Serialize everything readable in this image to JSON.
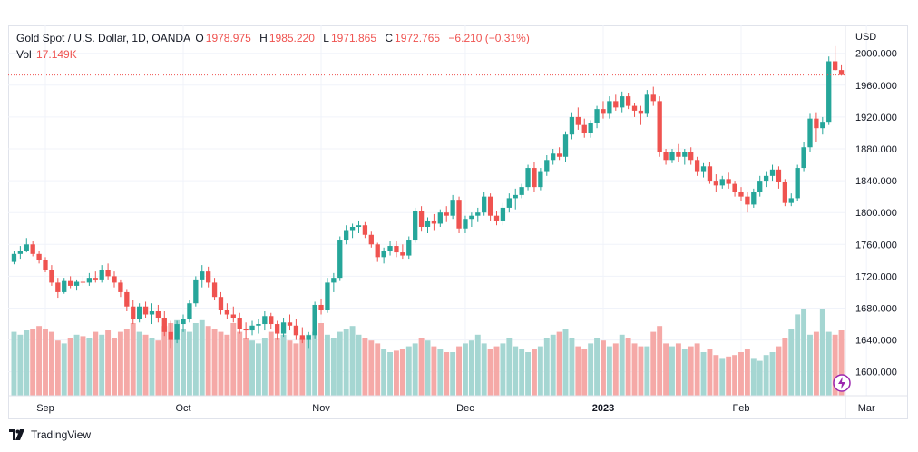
{
  "header": {
    "symbol": "Gold Spot / U.S. Dollar, 1D, OANDA",
    "o_label": "O",
    "o_value": "1978.975",
    "h_label": "H",
    "h_value": "1985.220",
    "l_label": "L",
    "l_value": "1971.865",
    "c_label": "C",
    "c_value": "1972.765",
    "change": "−6.210 (−0.31%)",
    "vol_label": "Vol",
    "vol_value": "17.149K"
  },
  "currency": "USD",
  "footer": {
    "brand": "TradingView"
  },
  "colors": {
    "up": "#26a69a",
    "down": "#ef5350",
    "vol_up": "#a5d6d2",
    "vol_down": "#f5a9a7",
    "grid": "#f0f3fa"
  },
  "chart_data": {
    "type": "candlestick",
    "title": "Gold Spot / U.S. Dollar, 1D, OANDA",
    "ylabel": "USD",
    "ylim": [
      1570,
      2035
    ],
    "y_ticks": [
      "1600.000",
      "1640.000",
      "1680.000",
      "1720.000",
      "1760.000",
      "1800.000",
      "1840.000",
      "1880.000",
      "1920.000",
      "1960.000",
      "2000.000"
    ],
    "x_ticks": [
      {
        "label": "Sep",
        "index": 5,
        "bold": false
      },
      {
        "label": "Oct",
        "index": 27,
        "bold": false
      },
      {
        "label": "Nov",
        "index": 49,
        "bold": false
      },
      {
        "label": "Dec",
        "index": 72,
        "bold": false
      },
      {
        "label": "2023",
        "index": 94,
        "bold": true
      },
      {
        "label": "Feb",
        "index": 116,
        "bold": false
      },
      {
        "label": "Mar",
        "index": 136,
        "bold": false
      }
    ],
    "last_price": 1972.765,
    "candles": [
      [
        1738,
        1752,
        1735,
        1748
      ],
      [
        1748,
        1758,
        1742,
        1752
      ],
      [
        1752,
        1768,
        1750,
        1760
      ],
      [
        1760,
        1764,
        1745,
        1748
      ],
      [
        1748,
        1752,
        1736,
        1740
      ],
      [
        1740,
        1744,
        1725,
        1728
      ],
      [
        1728,
        1734,
        1708,
        1712
      ],
      [
        1712,
        1718,
        1693,
        1700
      ],
      [
        1700,
        1718,
        1698,
        1714
      ],
      [
        1714,
        1720,
        1705,
        1708
      ],
      [
        1708,
        1716,
        1702,
        1713
      ],
      [
        1713,
        1720,
        1708,
        1712
      ],
      [
        1712,
        1724,
        1708,
        1718
      ],
      [
        1718,
        1726,
        1712,
        1716
      ],
      [
        1716,
        1734,
        1712,
        1728
      ],
      [
        1728,
        1736,
        1716,
        1720
      ],
      [
        1720,
        1726,
        1706,
        1712
      ],
      [
        1712,
        1716,
        1694,
        1700
      ],
      [
        1700,
        1704,
        1676,
        1682
      ],
      [
        1682,
        1690,
        1660,
        1666
      ],
      [
        1666,
        1686,
        1662,
        1682
      ],
      [
        1682,
        1688,
        1668,
        1672
      ],
      [
        1672,
        1686,
        1660,
        1676
      ],
      [
        1676,
        1684,
        1662,
        1668
      ],
      [
        1668,
        1676,
        1645,
        1650
      ],
      [
        1650,
        1664,
        1630,
        1640
      ],
      [
        1640,
        1664,
        1636,
        1660
      ],
      [
        1660,
        1672,
        1650,
        1666
      ],
      [
        1666,
        1690,
        1662,
        1686
      ],
      [
        1686,
        1720,
        1682,
        1716
      ],
      [
        1716,
        1734,
        1706,
        1726
      ],
      [
        1726,
        1732,
        1706,
        1712
      ],
      [
        1712,
        1718,
        1690,
        1694
      ],
      [
        1694,
        1700,
        1672,
        1678
      ],
      [
        1678,
        1686,
        1666,
        1672
      ],
      [
        1672,
        1682,
        1662,
        1668
      ],
      [
        1668,
        1674,
        1648,
        1654
      ],
      [
        1654,
        1662,
        1642,
        1652
      ],
      [
        1652,
        1664,
        1646,
        1658
      ],
      [
        1658,
        1666,
        1648,
        1660
      ],
      [
        1660,
        1676,
        1652,
        1670
      ],
      [
        1670,
        1674,
        1654,
        1660
      ],
      [
        1660,
        1664,
        1640,
        1648
      ],
      [
        1648,
        1668,
        1644,
        1662
      ],
      [
        1662,
        1672,
        1652,
        1658
      ],
      [
        1658,
        1666,
        1640,
        1646
      ],
      [
        1646,
        1656,
        1636,
        1640
      ],
      [
        1640,
        1650,
        1630,
        1646
      ],
      [
        1646,
        1688,
        1642,
        1684
      ],
      [
        1684,
        1692,
        1672,
        1678
      ],
      [
        1678,
        1718,
        1674,
        1712
      ],
      [
        1712,
        1724,
        1700,
        1718
      ],
      [
        1718,
        1770,
        1714,
        1766
      ],
      [
        1766,
        1784,
        1760,
        1778
      ],
      [
        1778,
        1786,
        1768,
        1782
      ],
      [
        1782,
        1790,
        1774,
        1784
      ],
      [
        1784,
        1788,
        1768,
        1772
      ],
      [
        1772,
        1776,
        1756,
        1760
      ],
      [
        1760,
        1762,
        1738,
        1744
      ],
      [
        1744,
        1756,
        1736,
        1752
      ],
      [
        1752,
        1764,
        1746,
        1758
      ],
      [
        1758,
        1764,
        1744,
        1750
      ],
      [
        1750,
        1760,
        1742,
        1746
      ],
      [
        1746,
        1770,
        1742,
        1766
      ],
      [
        1766,
        1806,
        1762,
        1802
      ],
      [
        1802,
        1808,
        1776,
        1782
      ],
      [
        1782,
        1794,
        1774,
        1790
      ],
      [
        1790,
        1798,
        1778,
        1786
      ],
      [
        1786,
        1804,
        1782,
        1800
      ],
      [
        1800,
        1808,
        1788,
        1796
      ],
      [
        1796,
        1822,
        1792,
        1816
      ],
      [
        1816,
        1820,
        1774,
        1780
      ],
      [
        1780,
        1796,
        1774,
        1792
      ],
      [
        1792,
        1800,
        1782,
        1796
      ],
      [
        1796,
        1806,
        1788,
        1800
      ],
      [
        1800,
        1826,
        1796,
        1820
      ],
      [
        1820,
        1824,
        1790,
        1796
      ],
      [
        1796,
        1802,
        1784,
        1790
      ],
      [
        1790,
        1812,
        1784,
        1806
      ],
      [
        1806,
        1824,
        1800,
        1818
      ],
      [
        1818,
        1830,
        1804,
        1822
      ],
      [
        1822,
        1836,
        1818,
        1832
      ],
      [
        1832,
        1860,
        1828,
        1856
      ],
      [
        1856,
        1864,
        1826,
        1832
      ],
      [
        1832,
        1856,
        1828,
        1852
      ],
      [
        1852,
        1872,
        1846,
        1866
      ],
      [
        1866,
        1880,
        1860,
        1874
      ],
      [
        1874,
        1882,
        1866,
        1870
      ],
      [
        1870,
        1902,
        1864,
        1898
      ],
      [
        1898,
        1926,
        1892,
        1920
      ],
      [
        1920,
        1932,
        1904,
        1910
      ],
      [
        1910,
        1918,
        1894,
        1900
      ],
      [
        1900,
        1916,
        1894,
        1912
      ],
      [
        1912,
        1934,
        1906,
        1930
      ],
      [
        1930,
        1940,
        1918,
        1924
      ],
      [
        1924,
        1946,
        1918,
        1940
      ],
      [
        1940,
        1948,
        1928,
        1932
      ],
      [
        1932,
        1952,
        1926,
        1946
      ],
      [
        1946,
        1950,
        1930,
        1934
      ],
      [
        1934,
        1938,
        1920,
        1928
      ],
      [
        1928,
        1934,
        1910,
        1924
      ],
      [
        1924,
        1954,
        1920,
        1948
      ],
      [
        1948,
        1958,
        1934,
        1940
      ],
      [
        1940,
        1946,
        1870,
        1876
      ],
      [
        1876,
        1880,
        1860,
        1866
      ],
      [
        1866,
        1880,
        1862,
        1876
      ],
      [
        1876,
        1886,
        1864,
        1870
      ],
      [
        1870,
        1880,
        1860,
        1876
      ],
      [
        1876,
        1882,
        1860,
        1866
      ],
      [
        1866,
        1870,
        1846,
        1852
      ],
      [
        1852,
        1862,
        1844,
        1858
      ],
      [
        1858,
        1864,
        1836,
        1840
      ],
      [
        1840,
        1848,
        1826,
        1834
      ],
      [
        1834,
        1846,
        1830,
        1842
      ],
      [
        1842,
        1850,
        1830,
        1836
      ],
      [
        1836,
        1840,
        1820,
        1826
      ],
      [
        1826,
        1832,
        1814,
        1820
      ],
      [
        1820,
        1826,
        1800,
        1810
      ],
      [
        1810,
        1830,
        1806,
        1826
      ],
      [
        1826,
        1846,
        1820,
        1840
      ],
      [
        1840,
        1852,
        1832,
        1846
      ],
      [
        1846,
        1860,
        1840,
        1854
      ],
      [
        1854,
        1858,
        1830,
        1838
      ],
      [
        1838,
        1842,
        1808,
        1812
      ],
      [
        1812,
        1824,
        1808,
        1818
      ],
      [
        1818,
        1860,
        1814,
        1856
      ],
      [
        1856,
        1888,
        1852,
        1882
      ],
      [
        1882,
        1924,
        1876,
        1918
      ],
      [
        1918,
        1926,
        1888,
        1906
      ],
      [
        1906,
        1920,
        1898,
        1914
      ],
      [
        1914,
        1996,
        1910,
        1990
      ],
      [
        1990,
        2009,
        1978,
        1979
      ],
      [
        1979,
        1985,
        1972,
        1972.765
      ]
    ],
    "volume_max": 60
  }
}
